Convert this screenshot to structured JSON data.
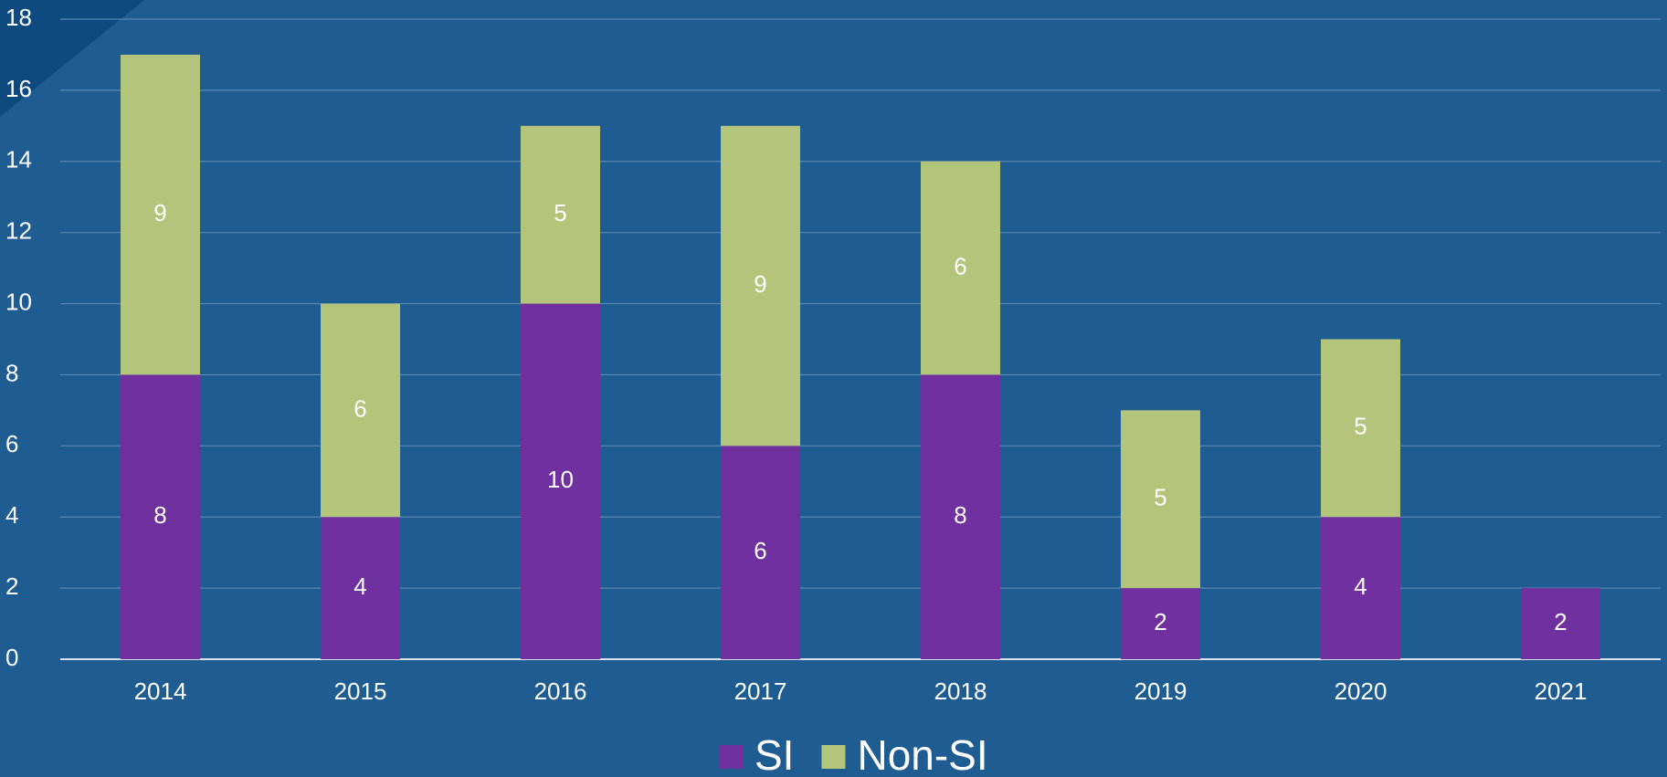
{
  "chart_data": {
    "type": "stacked_bar",
    "categories": [
      "2014",
      "2015",
      "2016",
      "2017",
      "2018",
      "2019",
      "2020",
      "2021"
    ],
    "series": [
      {
        "name": "SI",
        "color": "#7030a0",
        "values": [
          8,
          4,
          10,
          6,
          8,
          2,
          4,
          2
        ]
      },
      {
        "name": "Non-SI",
        "color": "#b3c57a",
        "values": [
          9,
          6,
          5,
          9,
          6,
          5,
          5,
          null
        ]
      }
    ],
    "ylim": [
      0,
      18
    ],
    "yticks": [
      0,
      2,
      4,
      6,
      8,
      10,
      12,
      14,
      16,
      18
    ],
    "grid": true,
    "legend": "bottom"
  }
}
